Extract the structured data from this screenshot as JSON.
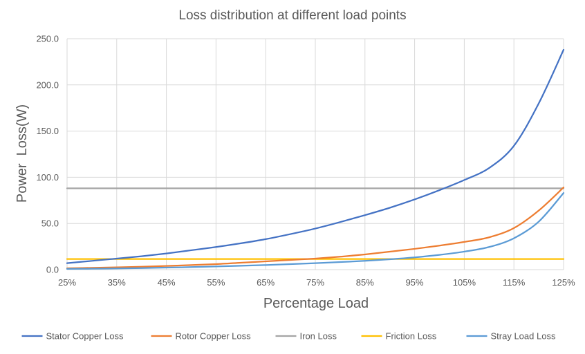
{
  "chart_data": {
    "type": "line",
    "title": "Loss distribution at different load points",
    "xlabel": "Percentage Load",
    "ylabel": "Power  Loss(W)",
    "x": [
      25,
      30,
      35,
      40,
      45,
      50,
      55,
      60,
      65,
      70,
      75,
      80,
      85,
      90,
      95,
      100,
      105,
      110,
      115,
      120,
      125
    ],
    "x_tick_labels": [
      "25%",
      "35%",
      "45%",
      "55%",
      "65%",
      "75%",
      "85%",
      "95%",
      "105%",
      "115%",
      "125%"
    ],
    "y_tick_labels": [
      "0.0",
      "50.0",
      "100.0",
      "150.0",
      "200.0",
      "250.0"
    ],
    "ylim": [
      0,
      250
    ],
    "xlim": [
      25,
      125
    ],
    "grid": true,
    "legend_position": "bottom",
    "series": [
      {
        "name": "Stator Copper Loss",
        "color": "#4472C4",
        "values": [
          7,
          9.5,
          12,
          14.5,
          17.5,
          21,
          24.5,
          28.5,
          33,
          38.5,
          44.5,
          51.5,
          59,
          67,
          76,
          86,
          97,
          110,
          134,
          180,
          238
        ]
      },
      {
        "name": "Rotor Copper Loss",
        "color": "#ED7D31",
        "values": [
          1.5,
          2,
          2.5,
          3.2,
          4,
          5,
          6,
          7.5,
          9,
          10.5,
          12,
          14,
          16.5,
          19.5,
          22.5,
          26,
          30,
          35,
          45,
          64,
          89
        ]
      },
      {
        "name": "Iron Loss",
        "color": "#A5A5A5",
        "values": [
          88,
          88,
          88,
          88,
          88,
          88,
          88,
          88,
          88,
          88,
          88,
          88,
          88,
          88,
          88,
          88,
          88,
          88,
          88,
          88,
          88
        ]
      },
      {
        "name": "Friction Loss",
        "color": "#FFC000",
        "values": [
          11.5,
          11.5,
          11.5,
          11.5,
          11.5,
          11.5,
          11.5,
          11.5,
          11.5,
          11.5,
          11.5,
          11.5,
          11.5,
          11.5,
          11.5,
          11.5,
          11.5,
          11.5,
          11.5,
          11.5,
          11.5
        ]
      },
      {
        "name": "Stray Load Loss",
        "color": "#5B9BD5",
        "values": [
          0.8,
          1,
          1.3,
          1.7,
          2.2,
          2.8,
          3.5,
          4.2,
          5,
          6,
          7,
          8.2,
          9.5,
          11.2,
          13.3,
          16,
          19.5,
          24.5,
          34,
          52,
          83
        ]
      }
    ]
  }
}
